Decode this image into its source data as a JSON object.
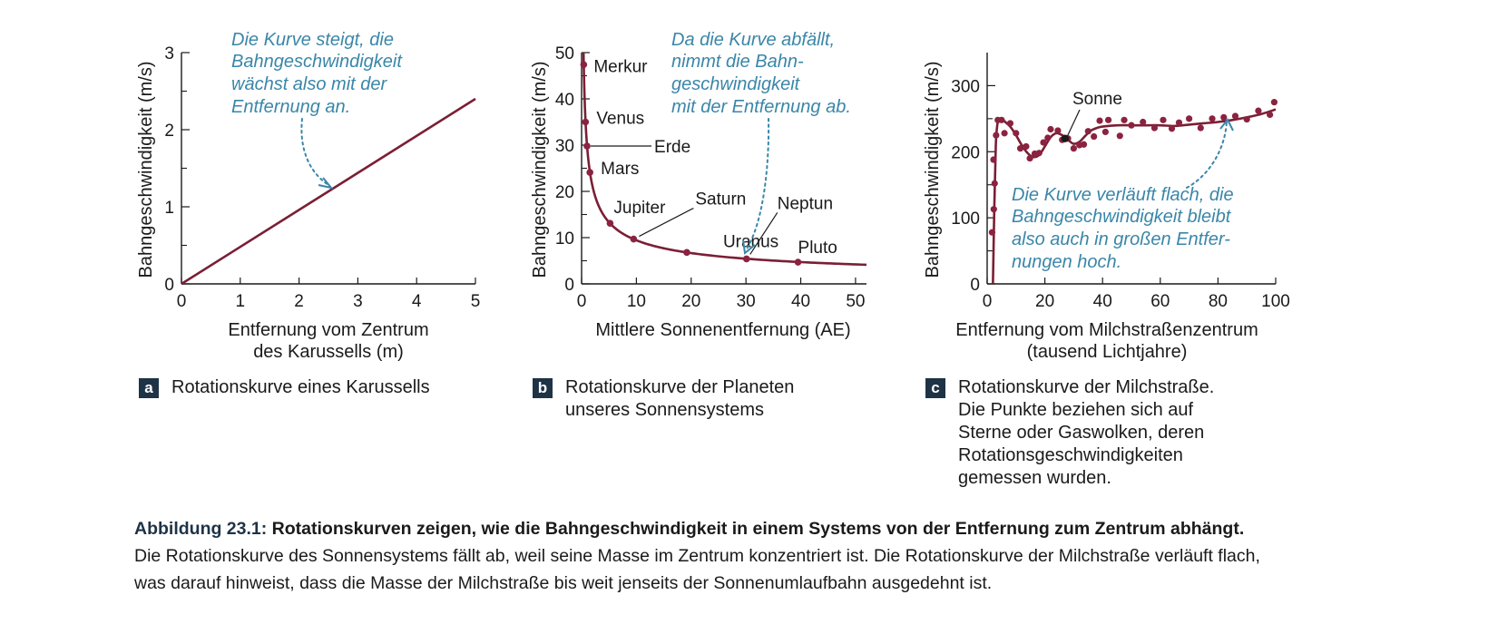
{
  "chart_data": [
    {
      "id": "a",
      "type": "line",
      "ylabel": "Bahngeschwindigkeit (m/s)",
      "xlabel_lines": [
        "Entfernung vom Zentrum",
        "des Karussells (m)"
      ],
      "xlim": [
        0,
        5
      ],
      "ylim": [
        0,
        3
      ],
      "x_ticks": [
        0,
        1,
        2,
        3,
        4,
        5
      ],
      "y_ticks": [
        0,
        1,
        2,
        3
      ],
      "series": [
        {
          "x": [
            0,
            5
          ],
          "y": [
            0,
            2.4
          ]
        }
      ],
      "annotation_lines": [
        "Die Kurve  steigt, die",
        "Bahngeschwindigkeit",
        "wächst also mit der",
        "Entfernung an."
      ],
      "caption_letter": "a",
      "caption_lines": [
        "Rotationskurve eines Karussells"
      ]
    },
    {
      "id": "b",
      "type": "line",
      "ylabel": "Bahngeschwindigkeit (m/s)",
      "xlabel": "Mittlere Sonnenentfernung (AE)",
      "xlim": [
        0,
        52
      ],
      "ylim": [
        0,
        50
      ],
      "x_ticks": [
        0,
        10,
        20,
        30,
        40,
        50
      ],
      "y_ticks": [
        0,
        10,
        20,
        30,
        40,
        50
      ],
      "planets": [
        {
          "name": "Merkur",
          "x": 0.39,
          "y": 47.4
        },
        {
          "name": "Venus",
          "x": 0.72,
          "y": 35.0
        },
        {
          "name": "Erde",
          "x": 1.0,
          "y": 29.8
        },
        {
          "name": "Mars",
          "x": 1.52,
          "y": 24.1
        },
        {
          "name": "Jupiter",
          "x": 5.2,
          "y": 13.1
        },
        {
          "name": "Saturn",
          "x": 9.5,
          "y": 9.7
        },
        {
          "name": "Uranus",
          "x": 19.2,
          "y": 6.8
        },
        {
          "name": "Neptun",
          "x": 30.1,
          "y": 5.4
        },
        {
          "name": "Pluto",
          "x": 39.5,
          "y": 4.7
        }
      ],
      "curve_constant": 29.8,
      "annotation_lines": [
        "Da die Kurve abfällt,",
        "nimmt die Bahn-",
        "geschwindigkeit",
        "mit der Entfernung ab."
      ],
      "caption_letter": "b",
      "caption_lines": [
        "Rotationskurve der Planeten",
        "unseres Sonnensystems"
      ]
    },
    {
      "id": "c",
      "type": "scatter",
      "ylabel": "Bahngeschwindigkeit (m/s)",
      "xlabel_lines": [
        "Entfernung vom Milchstraßenzentrum",
        "(tausend Lichtjahre)"
      ],
      "xlim": [
        0,
        100
      ],
      "ylim": [
        0,
        350
      ],
      "x_ticks": [
        0,
        20,
        40,
        60,
        80,
        100
      ],
      "y_ticks": [
        0,
        100,
        200,
        300
      ],
      "curve": {
        "x": [
          2,
          2.5,
          3,
          3.5,
          4,
          5,
          6,
          8,
          10,
          12,
          14,
          16,
          18,
          20,
          22,
          24,
          26,
          28,
          30,
          32,
          34,
          36,
          38,
          40,
          45,
          50,
          55,
          60,
          65,
          70,
          75,
          80,
          85,
          90,
          95,
          100
        ],
        "y": [
          0,
          120,
          210,
          240,
          248,
          250,
          246,
          238,
          225,
          210,
          198,
          192,
          195,
          208,
          222,
          228,
          225,
          218,
          212,
          215,
          224,
          232,
          236,
          238,
          240,
          240,
          240,
          240,
          239,
          241,
          243,
          245,
          248,
          252,
          257,
          264
        ]
      },
      "points": [
        [
          1.7,
          78
        ],
        [
          2.3,
          113
        ],
        [
          2.6,
          152
        ],
        [
          2.2,
          188
        ],
        [
          3.1,
          225
        ],
        [
          3.7,
          248
        ],
        [
          5,
          248
        ],
        [
          6,
          228
        ],
        [
          8,
          243
        ],
        [
          10,
          228
        ],
        [
          11.5,
          205
        ],
        [
          13.5,
          208
        ],
        [
          14.8,
          190
        ],
        [
          16.5,
          197
        ],
        [
          18,
          198
        ],
        [
          19.5,
          214
        ],
        [
          21,
          221
        ],
        [
          22,
          234
        ],
        [
          24.5,
          232
        ],
        [
          26,
          218
        ],
        [
          28,
          220
        ],
        [
          30,
          205
        ],
        [
          32,
          210
        ],
        [
          33.5,
          211
        ],
        [
          35,
          231
        ],
        [
          37,
          223
        ],
        [
          39,
          247
        ],
        [
          41,
          230
        ],
        [
          42,
          248
        ],
        [
          46,
          224
        ],
        [
          47.5,
          248
        ],
        [
          50,
          240
        ],
        [
          54,
          245
        ],
        [
          58,
          236
        ],
        [
          61,
          248
        ],
        [
          64,
          235
        ],
        [
          66.5,
          244
        ],
        [
          70,
          250
        ],
        [
          74,
          236
        ],
        [
          78,
          250
        ],
        [
          82,
          252
        ],
        [
          86,
          254
        ],
        [
          90,
          249
        ],
        [
          94,
          262
        ],
        [
          98,
          256
        ],
        [
          99.5,
          275
        ]
      ],
      "sun": {
        "name": "Sonne",
        "x": 27,
        "y": 220
      },
      "annotation_lines": [
        "Die Kurve verläuft flach, die",
        "Bahngeschwindigkeit bleibt",
        "also auch in großen Entfer-",
        "nungen hoch."
      ],
      "caption_letter": "c",
      "caption_lines": [
        "Rotationskurve der Milchstraße.",
        "Die Punkte beziehen sich auf",
        "Sterne oder Gaswolken, deren",
        "Rotationsgeschwindigkeiten",
        "gemessen wurden."
      ]
    }
  ],
  "figure_caption": {
    "number": "Abbildung 23.1:",
    "heading": "Rotationskurven zeigen, wie die Bahngeschwindigkeit in einem Systems von der Entfernung zum Zentrum abhängt.",
    "body_lines": [
      "Die Rotationskurve des Sonnensystems fällt ab, weil seine Masse im Zentrum konzentriert ist. Die Rotationskurve der Milchstraße verläuft flach,",
      "was darauf hinweist, dass die Masse der Milchstraße bis weit jenseits der Sonnenumlaufbahn ausgedehnt ist."
    ]
  },
  "colors": {
    "curve": "#7a1f35",
    "point": "#8b2340",
    "annotation": "#3a86a8",
    "sun_point": "#1a1a1a",
    "caption_accent": "#1f3347"
  }
}
